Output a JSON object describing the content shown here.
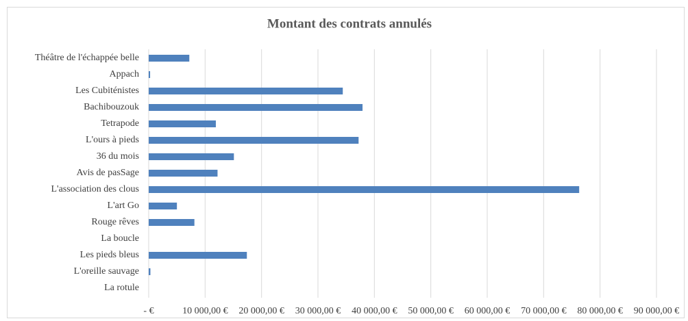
{
  "chart_data": {
    "type": "bar",
    "orientation": "horizontal",
    "title": "Montant des contrats annulés",
    "categories": [
      "Théâtre de l'échappée belle",
      "Appach",
      "Les Cubiténistes",
      "Bachibouzouk",
      "Tetrapode",
      "L'ours à pieds",
      "36 du mois",
      "Avis de pasSage",
      "L'association des clous",
      "L'art Go",
      "Rouge rêves",
      "La boucle",
      "Les pieds bleus",
      "L'oreille sauvage",
      "La rotule"
    ],
    "values": [
      7200,
      250,
      34400,
      37900,
      11900,
      37200,
      15100,
      12200,
      76300,
      5000,
      8100,
      0,
      17400,
      300,
      0
    ],
    "color": "#4f81bd",
    "xlim": [
      0,
      90000
    ],
    "xticks": [
      {
        "value": 0,
        "label": "-  €"
      },
      {
        "value": 10000,
        "label": "10 000,00 €"
      },
      {
        "value": 20000,
        "label": "20 000,00 €"
      },
      {
        "value": 30000,
        "label": "30 000,00 €"
      },
      {
        "value": 40000,
        "label": "40 000,00 €"
      },
      {
        "value": 50000,
        "label": "50 000,00 €"
      },
      {
        "value": 60000,
        "label": "60 000,00 €"
      },
      {
        "value": 70000,
        "label": "70 000,00 €"
      },
      {
        "value": 80000,
        "label": "80 000,00 €"
      },
      {
        "value": 90000,
        "label": "90 000,00 €"
      }
    ],
    "grid": true
  }
}
